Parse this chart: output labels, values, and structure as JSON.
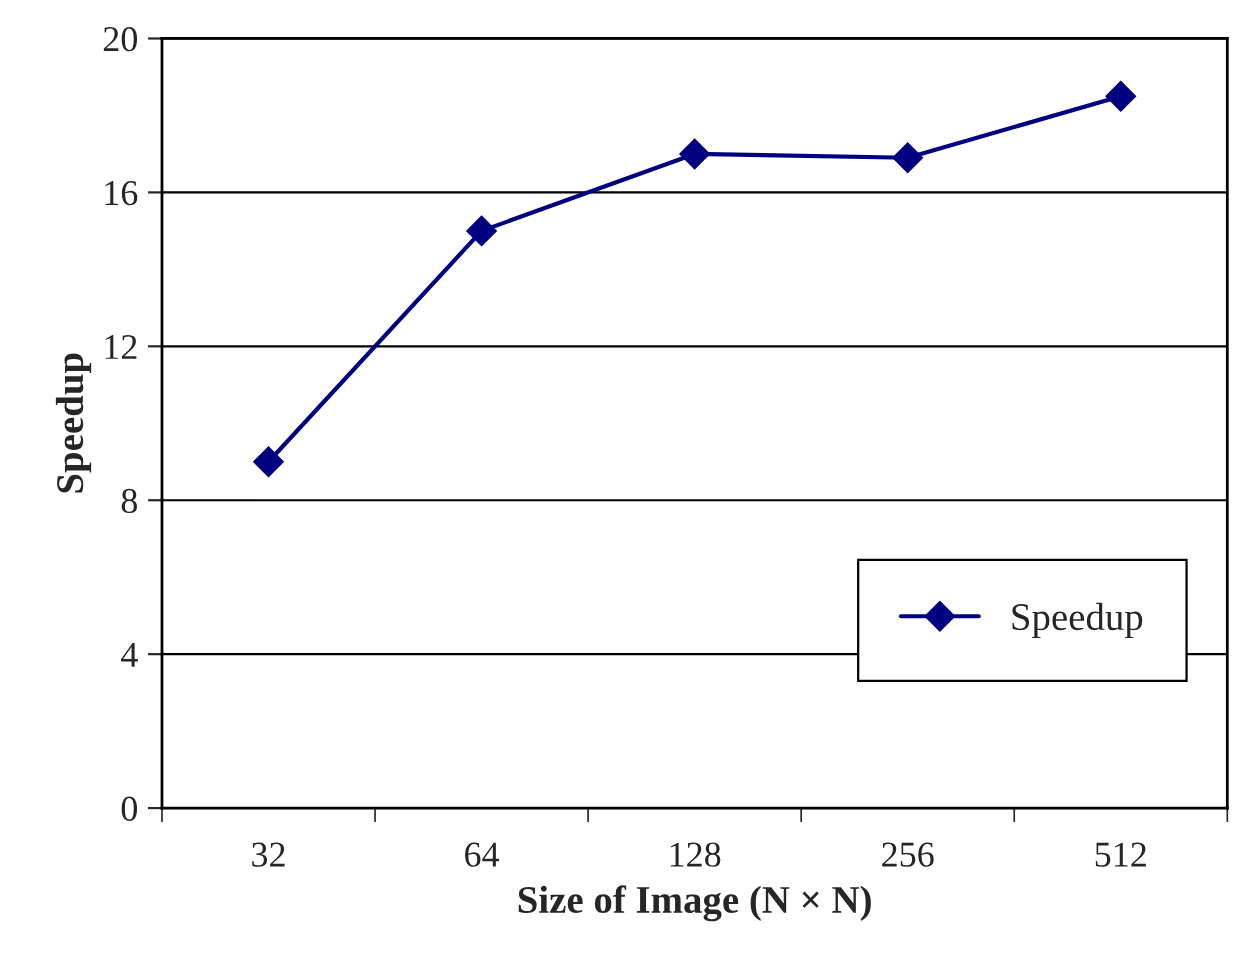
{
  "chart_data": {
    "type": "line",
    "xlabel": "Size of Image (N × N)",
    "ylabel": "Speedup",
    "categories": [
      "32",
      "64",
      "128",
      "256",
      "512"
    ],
    "series": [
      {
        "name": "Speedup",
        "color": "#000080",
        "values": [
          9,
          15,
          17,
          16.9,
          18.5
        ]
      }
    ],
    "ylim": [
      0,
      20
    ],
    "yticks": [
      0,
      4,
      8,
      12,
      16,
      20
    ],
    "grid": "y",
    "legend": "bottom right",
    "marker": "diamond",
    "line_style": "solid"
  }
}
